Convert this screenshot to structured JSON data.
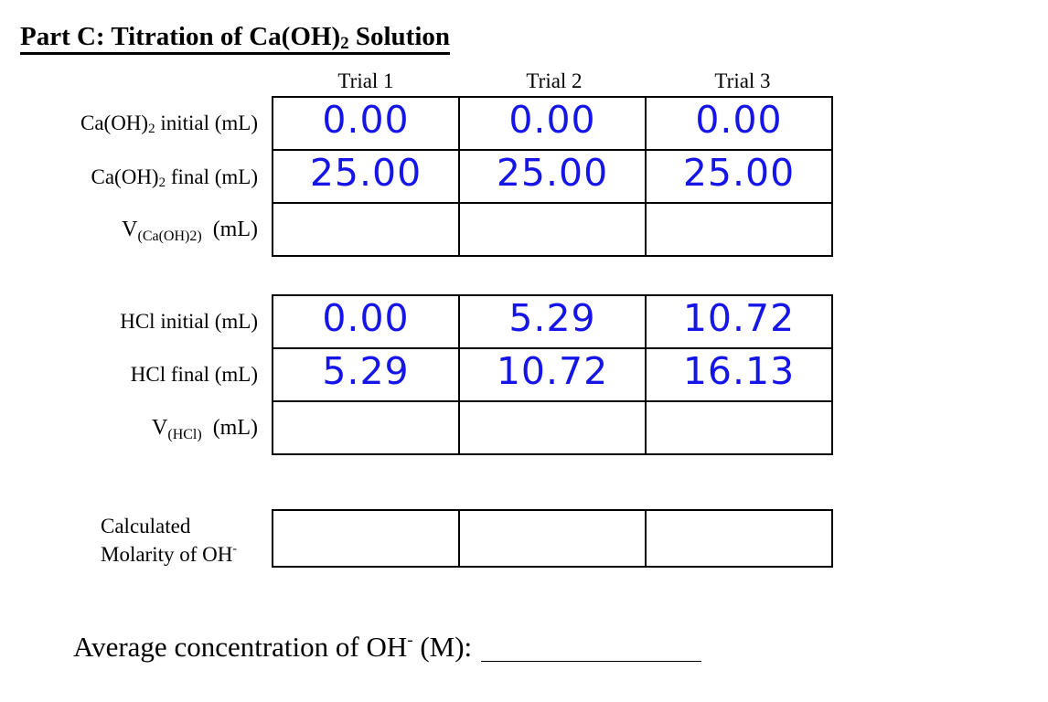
{
  "title": {
    "prefix": "Part C:  Titration of Ca(OH)",
    "sub": "2",
    "suffix": " Solution"
  },
  "trials": [
    "Trial 1",
    "Trial 2",
    "Trial 3"
  ],
  "caoh": {
    "initial_label": {
      "prefix": "Ca(OH)",
      "sub": "2",
      "suffix": " initial (mL)"
    },
    "final_label": {
      "prefix": "Ca(OH)",
      "sub": "2",
      "suffix": " final (mL)"
    },
    "volume_label": {
      "prefix": "V",
      "sub": "(Ca(OH)2)",
      "suffix": "  (mL)"
    },
    "initial": [
      "0.00",
      "0.00",
      "0.00"
    ],
    "final": [
      "25.00",
      "25.00",
      "25.00"
    ]
  },
  "hcl": {
    "initial_label": "HCl initial (mL)",
    "final_label": "HCl final (mL)",
    "volume_label": {
      "prefix": "V",
      "sub": "(HCl)",
      "suffix": "  (mL)"
    },
    "initial": [
      "0.00",
      "5.29",
      "10.72"
    ],
    "final": [
      "5.29",
      "10.72",
      "16.13"
    ]
  },
  "calc_label": {
    "line1": "Calculated",
    "line2": "Molarity of OH",
    "sup": "-"
  },
  "average": {
    "prefix": "Average concentration of OH",
    "sup": "-",
    "suffix": " (M):"
  },
  "colors": {
    "ink": "#1515e8"
  }
}
